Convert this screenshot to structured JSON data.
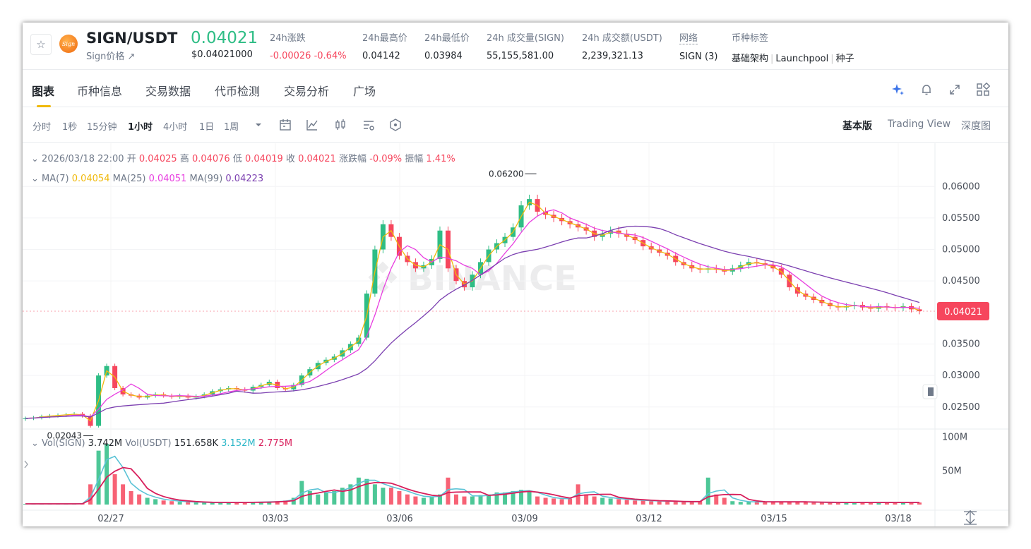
{
  "ticker": {
    "star_icon": "star-outline-icon",
    "logo_text": "Sign",
    "pair": "SIGN/USDT",
    "sub_label": "Sign价格 ↗",
    "last_price": "0.04021",
    "last_price_usd": "$0.04021000",
    "change_label": "24h涨跌",
    "change_value": "-0.00026 -0.64%",
    "high_label": "24h最高价",
    "high_value": "0.04142",
    "low_label": "24h最低价",
    "low_value": "0.03984",
    "volume_label": "24h 成交量(SIGN)",
    "volume_value": "55,155,581.00",
    "turnover_label": "24h 成交额(USDT)",
    "turnover_value": "2,239,321.13",
    "network_label": "网络",
    "network_value": "SIGN (3)",
    "tags_label": "币种标签",
    "tags": [
      "基础架构",
      "Launchpool",
      "种子"
    ]
  },
  "tabs": [
    {
      "label": "图表",
      "active": true
    },
    {
      "label": "币种信息"
    },
    {
      "label": "交易数据"
    },
    {
      "label": "代币检测"
    },
    {
      "label": "交易分析"
    },
    {
      "label": "广场"
    }
  ],
  "tab_tools": [
    "ai-sparkle-icon",
    "bell-icon",
    "expand-icon",
    "grid-icon"
  ],
  "intervals": [
    {
      "label": "分时"
    },
    {
      "label": "1秒"
    },
    {
      "label": "15分钟"
    },
    {
      "label": "1小时",
      "active": true
    },
    {
      "label": "4小时"
    },
    {
      "label": "1日"
    },
    {
      "label": "1周"
    }
  ],
  "toolbar_icons": [
    "dropdown-caret-icon",
    "calendar-icon",
    "indicator-icon",
    "candle-type-icon",
    "settings-icon",
    "hexagon-icon"
  ],
  "views": [
    {
      "label": "基本版",
      "active": true
    },
    {
      "label": "Trading View"
    },
    {
      "label": "深度图"
    }
  ],
  "ohlc_legend": {
    "datetime": "2026/03/18 22:00",
    "open_label": "开",
    "open": "0.04025",
    "high_label": "高",
    "high": "0.04076",
    "low_label": "低",
    "low": "0.04019",
    "close_label": "收",
    "close": "0.04021",
    "change_label": "涨跌幅",
    "change": "-0.09%",
    "amp_label": "振幅",
    "amp": "1.41%"
  },
  "ma_legend": {
    "ma7_label": "MA(7)",
    "ma7": "0.04054",
    "ma25_label": "MA(25)",
    "ma25": "0.04051",
    "ma99_label": "MA(99)",
    "ma99": "0.04223"
  },
  "vol_legend": {
    "vol_sign_label": "Vol(SIGN)",
    "vol_sign": "3.742M",
    "vol_usdt_label": "Vol(USDT)",
    "vol_usdt": "151.658K",
    "ma1": "3.152M",
    "ma2": "2.775M"
  },
  "watermark": "BINANCE",
  "colors": {
    "up": "#2ebd85",
    "down": "#f6465d",
    "ma7": "#f0b90b",
    "ma25": "#e83ee0",
    "ma99": "#7b3fb0",
    "vol_ma1": "#5bc3d6",
    "vol_ma2": "#d81e5b",
    "accent": "#f0b90b"
  },
  "chart_data": {
    "type": "candlestick",
    "interval": "1h",
    "price_axis": {
      "ticks": [
        "0.06000",
        "0.05500",
        "0.05000",
        "0.04500",
        "0.03500",
        "0.03000",
        "0.02500"
      ],
      "range": [
        0.0215,
        0.0635
      ]
    },
    "volume_axis": {
      "ticks": [
        "100M",
        "50M"
      ],
      "range": [
        0,
        110
      ]
    },
    "time_axis": {
      "ticks": [
        "02/27",
        "03/03",
        "03/06",
        "03/09",
        "03/12",
        "03/15",
        "03/18"
      ]
    },
    "last_price_tag": "0.04021",
    "max_label": "0.06200",
    "min_label": "0.02043",
    "close_series": [
      0.0232,
      0.0233,
      0.0235,
      0.0236,
      0.0237,
      0.0238,
      0.0239,
      0.0236,
      0.022,
      0.03,
      0.0315,
      0.028,
      0.027,
      0.0268,
      0.0265,
      0.0268,
      0.027,
      0.0268,
      0.0266,
      0.0268,
      0.0265,
      0.0267,
      0.027,
      0.0275,
      0.0278,
      0.028,
      0.0278,
      0.0276,
      0.0282,
      0.0285,
      0.029,
      0.028,
      0.0278,
      0.0285,
      0.03,
      0.031,
      0.032,
      0.0325,
      0.033,
      0.034,
      0.035,
      0.036,
      0.043,
      0.05,
      0.054,
      0.052,
      0.049,
      0.048,
      0.047,
      0.0475,
      0.0485,
      0.053,
      0.047,
      0.045,
      0.044,
      0.046,
      0.048,
      0.05,
      0.051,
      0.052,
      0.0535,
      0.057,
      0.058,
      0.056,
      0.0555,
      0.055,
      0.0545,
      0.054,
      0.0535,
      0.053,
      0.052,
      0.0525,
      0.053,
      0.0525,
      0.052,
      0.0515,
      0.0505,
      0.05,
      0.0495,
      0.049,
      0.048,
      0.0475,
      0.047,
      0.0468,
      0.047,
      0.0468,
      0.0465,
      0.047,
      0.0475,
      0.048,
      0.0478,
      0.0475,
      0.047,
      0.046,
      0.044,
      0.043,
      0.0425,
      0.042,
      0.0415,
      0.041,
      0.0408,
      0.041,
      0.0412,
      0.0408,
      0.0406,
      0.041,
      0.0408,
      0.0407,
      0.041,
      0.0405,
      0.0402
    ],
    "volume_series": [
      1,
      1,
      1,
      1,
      1,
      1,
      1,
      2,
      30,
      80,
      90,
      45,
      30,
      20,
      15,
      10,
      8,
      6,
      5,
      4,
      4,
      3,
      3,
      3,
      3,
      3,
      3,
      3,
      4,
      4,
      4,
      5,
      6,
      10,
      35,
      20,
      15,
      18,
      20,
      25,
      30,
      40,
      38,
      30,
      25,
      25,
      20,
      15,
      12,
      10,
      12,
      15,
      40,
      15,
      12,
      12,
      14,
      15,
      18,
      18,
      20,
      22,
      20,
      12,
      10,
      9,
      8,
      9,
      30,
      15,
      12,
      10,
      9,
      8,
      7,
      6,
      6,
      5,
      5,
      5,
      4,
      4,
      4,
      5,
      40,
      15,
      10,
      5,
      4,
      4,
      4,
      4,
      4,
      4,
      4,
      4,
      4,
      3,
      3,
      3,
      3,
      3,
      3,
      3,
      3,
      3,
      3,
      3,
      3,
      3,
      3
    ]
  }
}
